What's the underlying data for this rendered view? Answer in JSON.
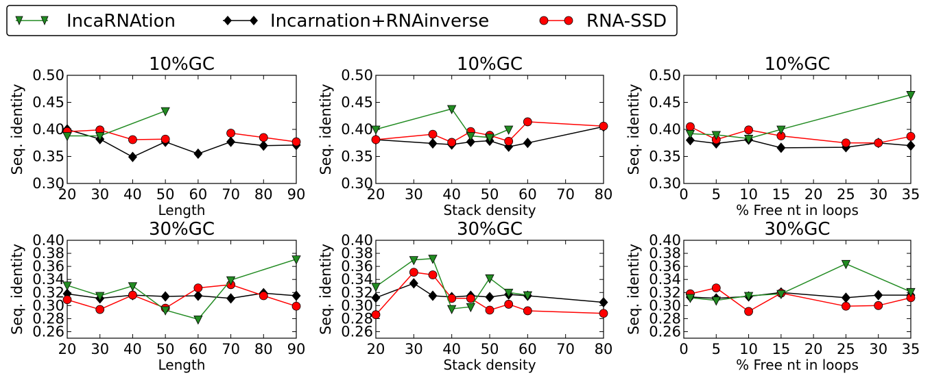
{
  "legend": {
    "placement": "top-left",
    "entries": [
      {
        "label": "IncaRNAtion",
        "color": "#228b22",
        "marker": "triangle-down"
      },
      {
        "label": "Incarnation+RNAinverse",
        "color": "#000000",
        "marker": "diamond"
      },
      {
        "label": "RNA-SSD",
        "color": "#ff0000",
        "marker": "circle"
      }
    ]
  },
  "chart_data": [
    {
      "type": "line",
      "title": "10%GC",
      "xlabel": "Length",
      "ylabel": "Seq. identity",
      "xlim": [
        20,
        90
      ],
      "ylim": [
        0.3,
        0.5
      ],
      "xticks": [
        "20",
        "30",
        "40",
        "50",
        "60",
        "70",
        "80",
        "90"
      ],
      "xtick_values": [
        20,
        30,
        40,
        50,
        60,
        70,
        80,
        90
      ],
      "yticks": [
        "0.30",
        "0.35",
        "0.40",
        "0.45",
        "0.50"
      ],
      "ytick_values": [
        0.3,
        0.35,
        0.4,
        0.45,
        0.5
      ],
      "series": [
        {
          "name": "IncaRNAtion",
          "x": [
            20,
            30,
            50
          ],
          "y": [
            0.388,
            0.388,
            0.434
          ]
        },
        {
          "name": "Incarnation+RNAinverse",
          "x": [
            20,
            30,
            40,
            50,
            60,
            70,
            80,
            90
          ],
          "y": [
            0.4,
            0.382,
            0.349,
            0.377,
            0.355,
            0.377,
            0.37,
            0.371
          ]
        },
        {
          "name": "RNA-SSD",
          "x": [
            20,
            30,
            40,
            50,
            60,
            70,
            80,
            90
          ],
          "y": [
            0.396,
            0.399,
            0.381,
            0.382,
            null,
            0.393,
            0.385,
            0.377
          ]
        }
      ]
    },
    {
      "type": "line",
      "title": "10%GC",
      "xlabel": "Stack density",
      "ylabel": "Seq. identity",
      "xlim": [
        20,
        80
      ],
      "ylim": [
        0.3,
        0.5
      ],
      "xticks": [
        "20",
        "30",
        "40",
        "50",
        "60",
        "70",
        "80"
      ],
      "xtick_values": [
        20,
        30,
        40,
        50,
        60,
        70,
        80
      ],
      "yticks": [
        "0.30",
        "0.35",
        "0.40",
        "0.45",
        "0.50"
      ],
      "ytick_values": [
        0.3,
        0.35,
        0.4,
        0.45,
        0.5
      ],
      "series": [
        {
          "name": "IncaRNAtion",
          "x": [
            20,
            40,
            45,
            50,
            55
          ],
          "y": [
            0.4,
            0.438,
            0.388,
            0.385,
            0.4
          ]
        },
        {
          "name": "Incarnation+RNAinverse",
          "x": [
            20,
            35,
            40,
            45,
            50,
            55,
            60,
            80
          ],
          "y": [
            0.381,
            0.374,
            0.372,
            0.377,
            0.379,
            0.368,
            0.375,
            0.405
          ]
        },
        {
          "name": "RNA-SSD",
          "x": [
            20,
            35,
            40,
            45,
            50,
            55,
            60,
            80
          ],
          "y": [
            0.381,
            0.391,
            0.376,
            0.396,
            0.389,
            0.378,
            0.414,
            0.406
          ]
        }
      ]
    },
    {
      "type": "line",
      "title": "10%GC",
      "xlabel": "% Free nt in loops",
      "ylabel": "Seq. identity",
      "xlim": [
        0,
        35
      ],
      "ylim": [
        0.3,
        0.5
      ],
      "xticks": [
        "0",
        "5",
        "10",
        "15",
        "20",
        "25",
        "30",
        "35"
      ],
      "xtick_values": [
        0,
        5,
        10,
        15,
        20,
        25,
        30,
        35
      ],
      "yticks": [
        "0.30",
        "0.35",
        "0.40",
        "0.45",
        "0.50"
      ],
      "ytick_values": [
        0.3,
        0.35,
        0.4,
        0.45,
        0.5
      ],
      "series": [
        {
          "name": "IncaRNAtion",
          "x": [
            1,
            5,
            10,
            15,
            35
          ],
          "y": [
            0.392,
            0.39,
            0.383,
            0.4,
            0.464
          ]
        },
        {
          "name": "Incarnation+RNAinverse",
          "x": [
            1,
            5,
            10,
            15,
            25,
            30,
            35
          ],
          "y": [
            0.38,
            0.374,
            0.381,
            0.366,
            0.367,
            0.375,
            0.37
          ]
        },
        {
          "name": "RNA-SSD",
          "x": [
            1,
            5,
            10,
            15,
            25,
            30,
            35
          ],
          "y": [
            0.405,
            0.381,
            0.399,
            0.388,
            0.375,
            0.375,
            0.387
          ]
        }
      ]
    },
    {
      "type": "line",
      "title": "30%GC",
      "xlabel": "Length",
      "ylabel": "Seq. identity",
      "xlim": [
        20,
        90
      ],
      "ylim": [
        0.25,
        0.4
      ],
      "xticks": [
        "20",
        "30",
        "40",
        "50",
        "60",
        "70",
        "80",
        "90"
      ],
      "xtick_values": [
        20,
        30,
        40,
        50,
        60,
        70,
        80,
        90
      ],
      "yticks": [
        "0.26",
        "0.28",
        "0.30",
        "0.32",
        "0.34",
        "0.36",
        "0.38",
        "0.40"
      ],
      "ytick_values": [
        0.26,
        0.28,
        0.3,
        0.32,
        0.34,
        0.36,
        0.38,
        0.4
      ],
      "series": [
        {
          "name": "IncaRNAtion",
          "x": [
            20,
            30,
            40,
            50,
            60,
            70,
            90
          ],
          "y": [
            0.331,
            0.315,
            0.33,
            0.293,
            0.279,
            0.339,
            0.371
          ]
        },
        {
          "name": "Incarnation+RNAinverse",
          "x": [
            20,
            30,
            40,
            50,
            60,
            70,
            80,
            90
          ],
          "y": [
            0.318,
            0.311,
            0.316,
            0.314,
            0.315,
            0.311,
            0.319,
            0.315
          ]
        },
        {
          "name": "RNA-SSD",
          "x": [
            20,
            30,
            40,
            50,
            60,
            70,
            80,
            90
          ],
          "y": [
            0.309,
            0.294,
            0.316,
            0.296,
            0.327,
            0.332,
            0.315,
            0.299
          ]
        }
      ]
    },
    {
      "type": "line",
      "title": "30%GC",
      "xlabel": "Stack density",
      "ylabel": "Seq. identity",
      "xlim": [
        20,
        80
      ],
      "ylim": [
        0.25,
        0.4
      ],
      "xticks": [
        "20",
        "30",
        "40",
        "50",
        "60",
        "70",
        "80"
      ],
      "xtick_values": [
        20,
        30,
        40,
        50,
        60,
        70,
        80
      ],
      "yticks": [
        "0.26",
        "0.28",
        "0.30",
        "0.32",
        "0.34",
        "0.36",
        "0.38",
        "0.40"
      ],
      "ytick_values": [
        0.26,
        0.28,
        0.3,
        0.32,
        0.34,
        0.36,
        0.38,
        0.4
      ],
      "series": [
        {
          "name": "IncaRNAtion",
          "x": [
            20,
            30,
            35,
            40,
            45,
            50,
            55,
            60
          ],
          "y": [
            0.329,
            0.37,
            0.372,
            0.295,
            0.298,
            0.342,
            0.32,
            0.316
          ]
        },
        {
          "name": "Incarnation+RNAinverse",
          "x": [
            20,
            30,
            35,
            40,
            45,
            50,
            55,
            60,
            80
          ],
          "y": [
            0.312,
            0.334,
            0.315,
            0.313,
            0.315,
            0.313,
            0.317,
            0.315,
            0.305
          ]
        },
        {
          "name": "RNA-SSD",
          "x": [
            20,
            30,
            35,
            40,
            45,
            50,
            55,
            60,
            80
          ],
          "y": [
            0.286,
            0.351,
            0.347,
            0.311,
            0.311,
            0.293,
            0.302,
            0.292,
            0.288
          ]
        }
      ]
    },
    {
      "type": "line",
      "title": "30%GC",
      "xlabel": "% Free nt in loops",
      "ylabel": "Seq. identity",
      "xlim": [
        0,
        35
      ],
      "ylim": [
        0.25,
        0.4
      ],
      "xticks": [
        "0",
        "5",
        "10",
        "15",
        "20",
        "25",
        "30",
        "35"
      ],
      "xtick_values": [
        0,
        5,
        10,
        15,
        20,
        25,
        30,
        35
      ],
      "yticks": [
        "0.26",
        "0.28",
        "0.30",
        "0.32",
        "0.34",
        "0.36",
        "0.38",
        "0.40"
      ],
      "ytick_values": [
        0.26,
        0.28,
        0.3,
        0.32,
        0.34,
        0.36,
        0.38,
        0.4
      ],
      "series": [
        {
          "name": "IncaRNAtion",
          "x": [
            1,
            5,
            10,
            15,
            25,
            35
          ],
          "y": [
            0.312,
            0.308,
            0.315,
            0.318,
            0.364,
            0.321
          ]
        },
        {
          "name": "Incarnation+RNAinverse",
          "x": [
            1,
            5,
            10,
            15,
            25,
            30,
            35
          ],
          "y": [
            0.313,
            0.311,
            0.314,
            0.32,
            0.312,
            0.316,
            0.316
          ]
        },
        {
          "name": "RNA-SSD",
          "x": [
            1,
            5,
            10,
            15,
            25,
            30,
            35
          ],
          "y": [
            0.318,
            0.327,
            0.291,
            0.319,
            0.299,
            0.3,
            0.312
          ]
        }
      ]
    }
  ]
}
